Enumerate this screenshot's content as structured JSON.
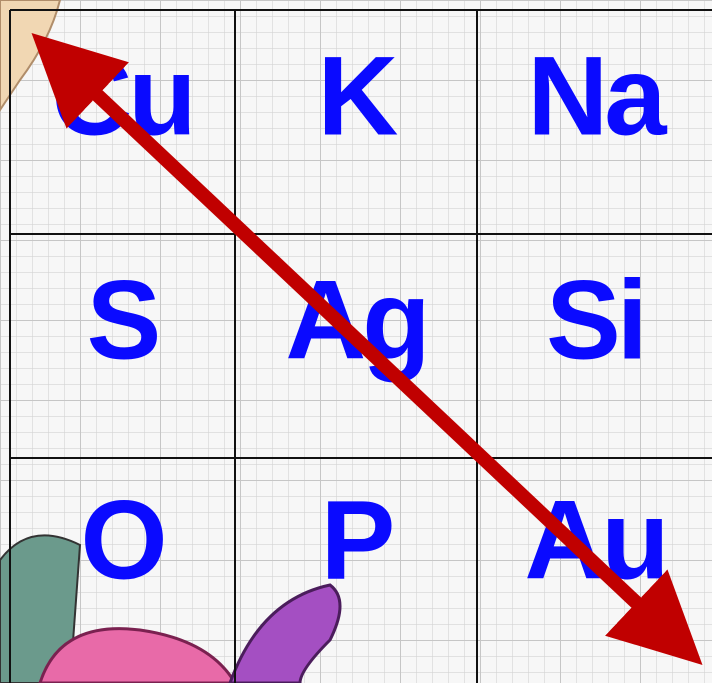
{
  "grid": {
    "rows": [
      [
        "Cu",
        "K",
        "Na"
      ],
      [
        "S",
        "Ag",
        "Si"
      ],
      [
        "O",
        "P",
        "Au"
      ]
    ]
  }
}
